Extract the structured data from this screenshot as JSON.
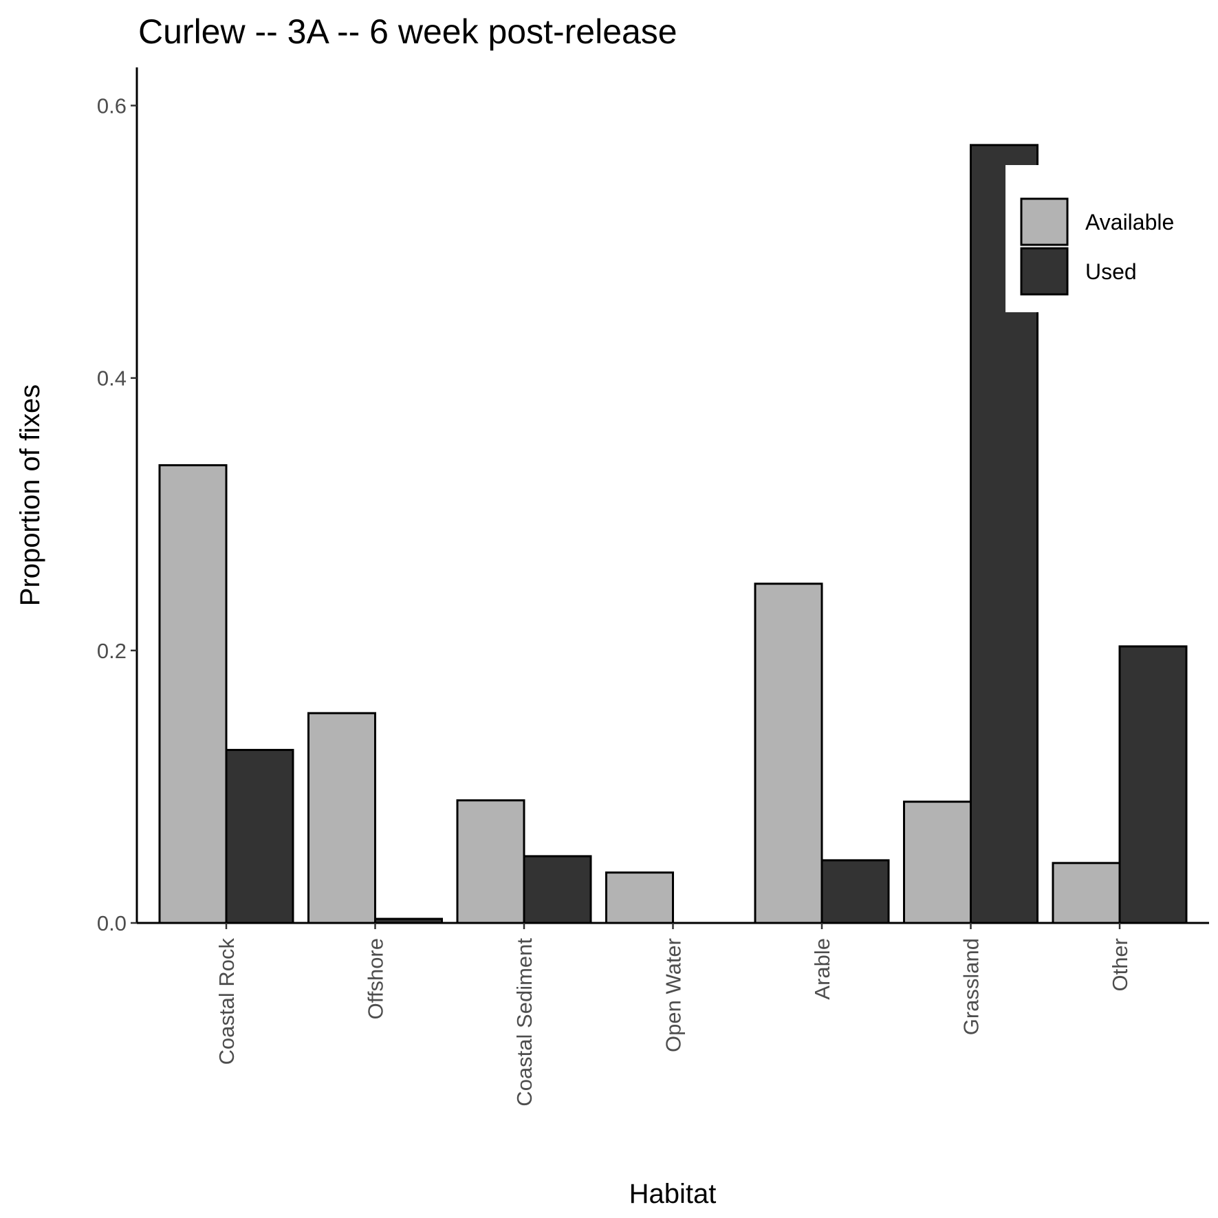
{
  "chart_data": {
    "type": "bar",
    "title": "Curlew -- 3A -- 6 week post-release",
    "xlabel": "Habitat",
    "ylabel": "Proportion of fixes",
    "categories": [
      "Coastal Rock",
      "Offshore",
      "Coastal Sediment",
      "Open Water",
      "Arable",
      "Grassland",
      "Other"
    ],
    "series": [
      {
        "name": "Available",
        "color": "#b3b3b3",
        "values": [
          0.336,
          0.154,
          0.09,
          0.037,
          0.249,
          0.089,
          0.044
        ]
      },
      {
        "name": "Used",
        "color": "#333333",
        "values": [
          0.127,
          0.003,
          0.049,
          0.0,
          0.046,
          0.571,
          0.203
        ]
      }
    ],
    "ylim": [
      0,
      0.628
    ],
    "yticks": [
      0.0,
      0.2,
      0.4,
      0.6
    ],
    "ytick_labels": [
      "0.0",
      "0.2",
      "0.4",
      "0.6"
    ],
    "grid": false,
    "legend_position": "top-right"
  }
}
